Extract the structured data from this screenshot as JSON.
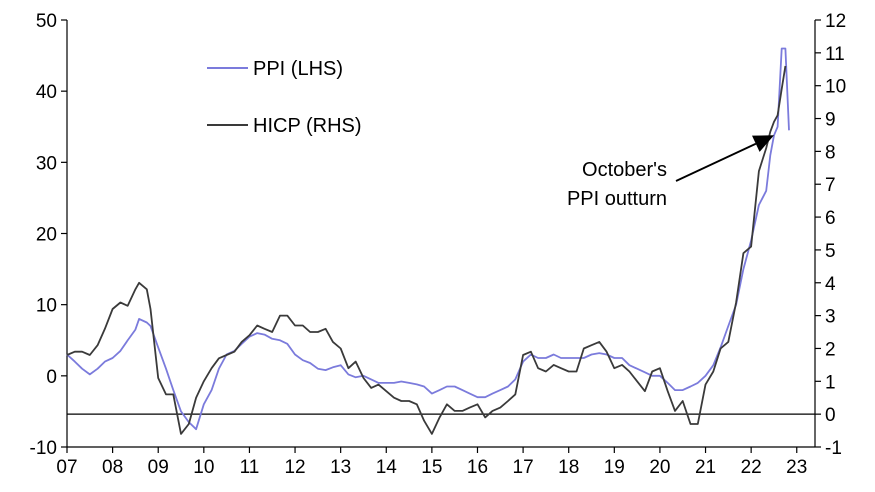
{
  "chart_data": {
    "type": "line",
    "title": "",
    "xlabel": "",
    "ylabel_left": "",
    "ylabel_right": "",
    "x_tick_labels": [
      "07",
      "08",
      "09",
      "10",
      "11",
      "12",
      "13",
      "14",
      "15",
      "16",
      "17",
      "18",
      "19",
      "20",
      "21",
      "22",
      "23"
    ],
    "x_range": [
      2007.0,
      2023.4
    ],
    "left_axis": {
      "min": -10,
      "max": 50,
      "ticks": [
        -10,
        0,
        10,
        20,
        30,
        40,
        50
      ]
    },
    "right_axis": {
      "min": -1,
      "max": 12,
      "ticks": [
        -1,
        0,
        1,
        2,
        3,
        4,
        5,
        6,
        7,
        8,
        9,
        10,
        11,
        12
      ]
    },
    "grid": false,
    "legend_position": "top-left",
    "annotation": {
      "lines": [
        "October's",
        "PPI outturn"
      ],
      "arrow_target": {
        "series": "PPI (LHS)",
        "x": 2022.5,
        "y": 33.8
      }
    },
    "series": [
      {
        "name": "PPI (LHS)",
        "axis": "left",
        "color": "#7b7bdc",
        "points": [
          [
            2007.0,
            3.0
          ],
          [
            2007.17,
            2.0
          ],
          [
            2007.33,
            1.0
          ],
          [
            2007.5,
            0.2
          ],
          [
            2007.67,
            1.0
          ],
          [
            2007.83,
            2.0
          ],
          [
            2008.0,
            2.5
          ],
          [
            2008.17,
            3.5
          ],
          [
            2008.33,
            5.0
          ],
          [
            2008.5,
            6.5
          ],
          [
            2008.58,
            8.0
          ],
          [
            2008.75,
            7.5
          ],
          [
            2008.83,
            7.0
          ],
          [
            2009.0,
            4.0
          ],
          [
            2009.17,
            1.0
          ],
          [
            2009.33,
            -2.0
          ],
          [
            2009.5,
            -5.0
          ],
          [
            2009.67,
            -6.5
          ],
          [
            2009.83,
            -7.5
          ],
          [
            2010.0,
            -4.0
          ],
          [
            2010.17,
            -2.0
          ],
          [
            2010.33,
            1.0
          ],
          [
            2010.5,
            3.0
          ],
          [
            2010.67,
            3.5
          ],
          [
            2010.83,
            4.5
          ],
          [
            2011.0,
            5.5
          ],
          [
            2011.17,
            6.0
          ],
          [
            2011.33,
            5.8
          ],
          [
            2011.5,
            5.2
          ],
          [
            2011.67,
            5.0
          ],
          [
            2011.83,
            4.5
          ],
          [
            2012.0,
            3.0
          ],
          [
            2012.17,
            2.2
          ],
          [
            2012.33,
            1.8
          ],
          [
            2012.5,
            1.0
          ],
          [
            2012.67,
            0.8
          ],
          [
            2012.83,
            1.2
          ],
          [
            2013.0,
            1.5
          ],
          [
            2013.17,
            0.2
          ],
          [
            2013.33,
            -0.2
          ],
          [
            2013.5,
            0.0
          ],
          [
            2013.67,
            -0.5
          ],
          [
            2013.83,
            -1.0
          ],
          [
            2014.0,
            -1.0
          ],
          [
            2014.17,
            -1.0
          ],
          [
            2014.33,
            -0.8
          ],
          [
            2014.5,
            -1.0
          ],
          [
            2014.67,
            -1.2
          ],
          [
            2014.83,
            -1.5
          ],
          [
            2015.0,
            -2.5
          ],
          [
            2015.17,
            -2.0
          ],
          [
            2015.33,
            -1.5
          ],
          [
            2015.5,
            -1.5
          ],
          [
            2015.67,
            -2.0
          ],
          [
            2015.83,
            -2.5
          ],
          [
            2016.0,
            -3.0
          ],
          [
            2016.17,
            -3.0
          ],
          [
            2016.33,
            -2.5
          ],
          [
            2016.5,
            -2.0
          ],
          [
            2016.67,
            -1.5
          ],
          [
            2016.83,
            -0.5
          ],
          [
            2017.0,
            2.0
          ],
          [
            2017.17,
            3.0
          ],
          [
            2017.33,
            2.5
          ],
          [
            2017.5,
            2.5
          ],
          [
            2017.67,
            3.0
          ],
          [
            2017.83,
            2.5
          ],
          [
            2018.0,
            2.5
          ],
          [
            2018.17,
            2.5
          ],
          [
            2018.33,
            2.5
          ],
          [
            2018.5,
            3.0
          ],
          [
            2018.67,
            3.2
          ],
          [
            2018.83,
            3.0
          ],
          [
            2019.0,
            2.5
          ],
          [
            2019.17,
            2.5
          ],
          [
            2019.33,
            1.5
          ],
          [
            2019.5,
            1.0
          ],
          [
            2019.67,
            0.5
          ],
          [
            2019.83,
            0.0
          ],
          [
            2020.0,
            0.0
          ],
          [
            2020.17,
            -1.0
          ],
          [
            2020.33,
            -2.0
          ],
          [
            2020.5,
            -2.0
          ],
          [
            2020.67,
            -1.5
          ],
          [
            2020.83,
            -1.0
          ],
          [
            2021.0,
            0.0
          ],
          [
            2021.17,
            1.5
          ],
          [
            2021.33,
            4.0
          ],
          [
            2021.5,
            7.0
          ],
          [
            2021.67,
            10.0
          ],
          [
            2021.83,
            15.0
          ],
          [
            2022.0,
            19.0
          ],
          [
            2022.17,
            24.0
          ],
          [
            2022.33,
            26.0
          ],
          [
            2022.42,
            31.0
          ],
          [
            2022.5,
            33.8
          ],
          [
            2022.58,
            35.0
          ],
          [
            2022.67,
            46.0
          ],
          [
            2022.75,
            46.0
          ],
          [
            2022.83,
            34.5
          ]
        ]
      },
      {
        "name": "HICP (RHS)",
        "axis": "right",
        "color": "#3a3a3a",
        "points": [
          [
            2007.0,
            1.8
          ],
          [
            2007.17,
            1.9
          ],
          [
            2007.33,
            1.9
          ],
          [
            2007.5,
            1.8
          ],
          [
            2007.67,
            2.1
          ],
          [
            2007.83,
            2.6
          ],
          [
            2008.0,
            3.2
          ],
          [
            2008.17,
            3.4
          ],
          [
            2008.33,
            3.3
          ],
          [
            2008.5,
            3.8
          ],
          [
            2008.58,
            4.0
          ],
          [
            2008.75,
            3.8
          ],
          [
            2008.83,
            3.2
          ],
          [
            2009.0,
            1.1
          ],
          [
            2009.17,
            0.6
          ],
          [
            2009.33,
            0.6
          ],
          [
            2009.5,
            -0.6
          ],
          [
            2009.67,
            -0.3
          ],
          [
            2009.83,
            0.5
          ],
          [
            2010.0,
            1.0
          ],
          [
            2010.17,
            1.4
          ],
          [
            2010.33,
            1.7
          ],
          [
            2010.5,
            1.8
          ],
          [
            2010.67,
            1.9
          ],
          [
            2010.83,
            2.2
          ],
          [
            2011.0,
            2.4
          ],
          [
            2011.17,
            2.7
          ],
          [
            2011.33,
            2.6
          ],
          [
            2011.5,
            2.5
          ],
          [
            2011.67,
            3.0
          ],
          [
            2011.83,
            3.0
          ],
          [
            2012.0,
            2.7
          ],
          [
            2012.17,
            2.7
          ],
          [
            2012.33,
            2.5
          ],
          [
            2012.5,
            2.5
          ],
          [
            2012.67,
            2.6
          ],
          [
            2012.83,
            2.2
          ],
          [
            2013.0,
            2.0
          ],
          [
            2013.17,
            1.4
          ],
          [
            2013.33,
            1.6
          ],
          [
            2013.5,
            1.1
          ],
          [
            2013.67,
            0.8
          ],
          [
            2013.83,
            0.9
          ],
          [
            2014.0,
            0.7
          ],
          [
            2014.17,
            0.5
          ],
          [
            2014.33,
            0.4
          ],
          [
            2014.5,
            0.4
          ],
          [
            2014.67,
            0.3
          ],
          [
            2014.83,
            -0.2
          ],
          [
            2015.0,
            -0.6
          ],
          [
            2015.17,
            -0.1
          ],
          [
            2015.33,
            0.3
          ],
          [
            2015.5,
            0.1
          ],
          [
            2015.67,
            0.1
          ],
          [
            2015.83,
            0.2
          ],
          [
            2016.0,
            0.3
          ],
          [
            2016.17,
            -0.1
          ],
          [
            2016.33,
            0.1
          ],
          [
            2016.5,
            0.2
          ],
          [
            2016.67,
            0.4
          ],
          [
            2016.83,
            0.6
          ],
          [
            2017.0,
            1.8
          ],
          [
            2017.17,
            1.9
          ],
          [
            2017.33,
            1.4
          ],
          [
            2017.5,
            1.3
          ],
          [
            2017.67,
            1.5
          ],
          [
            2017.83,
            1.4
          ],
          [
            2018.0,
            1.3
          ],
          [
            2018.17,
            1.3
          ],
          [
            2018.33,
            2.0
          ],
          [
            2018.5,
            2.1
          ],
          [
            2018.67,
            2.2
          ],
          [
            2018.83,
            1.9
          ],
          [
            2019.0,
            1.4
          ],
          [
            2019.17,
            1.5
          ],
          [
            2019.33,
            1.3
          ],
          [
            2019.5,
            1.0
          ],
          [
            2019.67,
            0.7
          ],
          [
            2019.83,
            1.3
          ],
          [
            2020.0,
            1.4
          ],
          [
            2020.17,
            0.7
          ],
          [
            2020.33,
            0.1
          ],
          [
            2020.5,
            0.4
          ],
          [
            2020.67,
            -0.3
          ],
          [
            2020.83,
            -0.3
          ],
          [
            2021.0,
            0.9
          ],
          [
            2021.17,
            1.3
          ],
          [
            2021.33,
            2.0
          ],
          [
            2021.5,
            2.2
          ],
          [
            2021.67,
            3.4
          ],
          [
            2021.83,
            4.9
          ],
          [
            2022.0,
            5.1
          ],
          [
            2022.17,
            7.4
          ],
          [
            2022.33,
            8.1
          ],
          [
            2022.42,
            8.6
          ],
          [
            2022.5,
            8.9
          ],
          [
            2022.58,
            9.1
          ],
          [
            2022.67,
            9.9
          ],
          [
            2022.75,
            10.6
          ]
        ]
      }
    ]
  }
}
